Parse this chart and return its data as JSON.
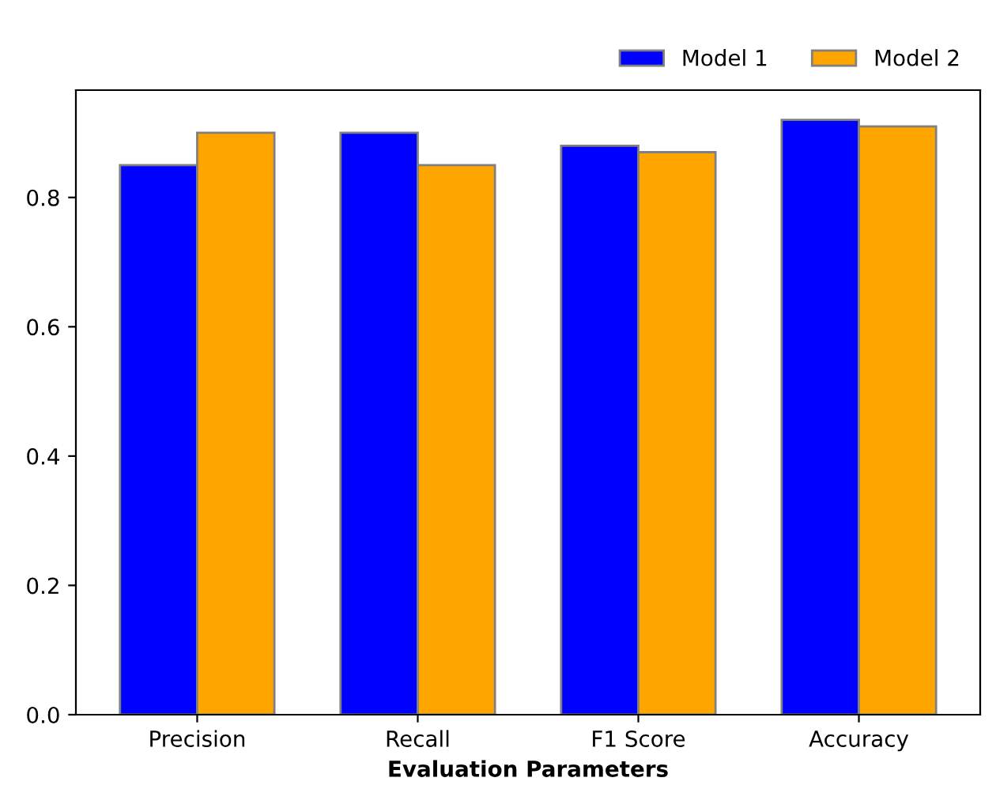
{
  "chart_data": {
    "type": "bar",
    "xlabel": "Evaluation Parameters",
    "categories": [
      "Precision",
      "Recall",
      "F1 Score",
      "Accuracy"
    ],
    "series": [
      {
        "name": "Model 1",
        "color": "#0000ff",
        "values": [
          0.85,
          0.9,
          0.88,
          0.92
        ]
      },
      {
        "name": "Model 2",
        "color": "#ffa500",
        "values": [
          0.9,
          0.85,
          0.87,
          0.91
        ]
      }
    ],
    "ylim": [
      0,
      0.966
    ],
    "yticks": [
      {
        "value": 0,
        "label": "0.0"
      },
      0.2,
      0.4,
      0.6,
      0.8
    ],
    "legend": "top right",
    "grid": false
  }
}
